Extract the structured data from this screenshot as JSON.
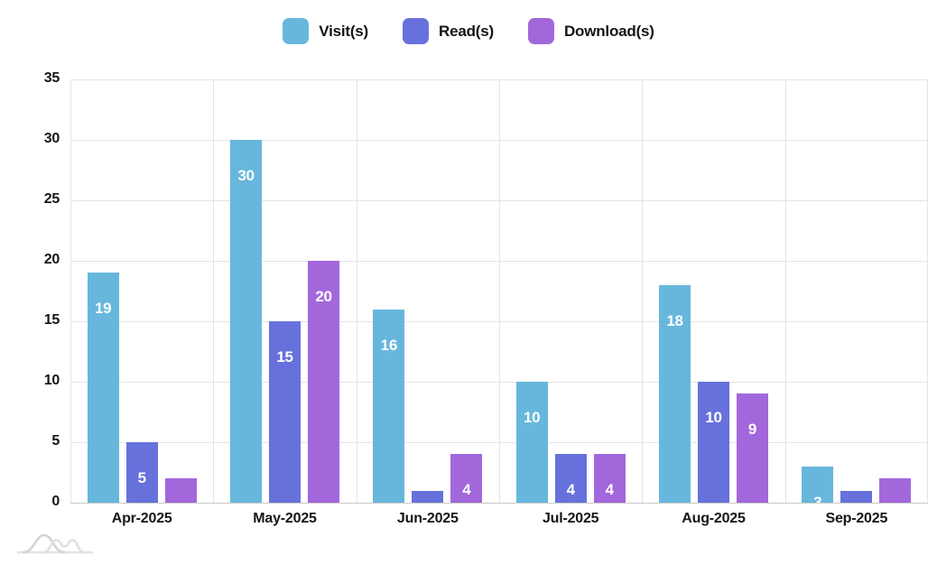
{
  "colors": {
    "visit": "#67B7DC",
    "read": "#6771DC",
    "download": "#A367DC",
    "grid": "#e4e4e4",
    "axis": "#c9c9c9",
    "tick_text": "#161616",
    "bar_label_text": "#ffffff",
    "logo_gray": "#d4d4d4",
    "logo_light_gray": "#e3e3e3"
  },
  "legend": {
    "items": [
      {
        "label": "Visit(s)",
        "color": "#67B7DC"
      },
      {
        "label": "Read(s)",
        "color": "#6771DC"
      },
      {
        "label": "Download(s)",
        "color": "#A367DC"
      }
    ]
  },
  "chart_data": {
    "type": "bar",
    "title": "",
    "xlabel": "",
    "ylabel": "",
    "categories": [
      "Apr-2025",
      "May-2025",
      "Jun-2025",
      "Jul-2025",
      "Aug-2025",
      "Sep-2025"
    ],
    "series": [
      {
        "name": "Visit(s)",
        "color": "#67B7DC",
        "values": [
          19,
          30,
          16,
          10,
          18,
          3
        ]
      },
      {
        "name": "Read(s)",
        "color": "#6771DC",
        "values": [
          5,
          15,
          1,
          4,
          10,
          1
        ]
      },
      {
        "name": "Download(s)",
        "color": "#A367DC",
        "values": [
          2,
          20,
          4,
          4,
          9,
          2
        ]
      }
    ],
    "ylim": [
      0,
      35
    ],
    "yticks": [
      0,
      5,
      10,
      15,
      20,
      25,
      30,
      35
    ],
    "grid": true,
    "legend_position": "top-center",
    "bar_value_labels": "inside-top, white, hidden when bar too short"
  },
  "branding": {
    "logo": "amcharts-logo"
  }
}
